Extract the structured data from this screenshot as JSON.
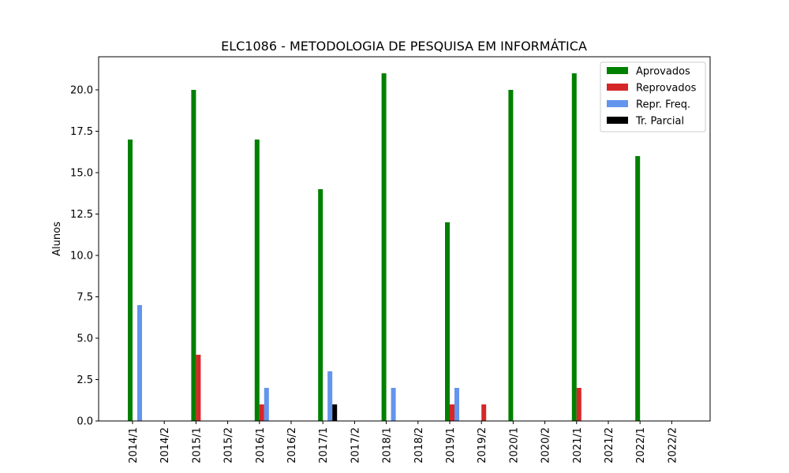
{
  "chart_data": {
    "type": "bar",
    "title": "ELC1086 - METODOLOGIA DE PESQUISA EM INFORMÁTICA",
    "xlabel": "",
    "ylabel": "Alunos",
    "ylim": [
      0,
      22
    ],
    "yticks": [
      "0.0",
      "2.5",
      "5.0",
      "7.5",
      "10.0",
      "12.5",
      "15.0",
      "17.5",
      "20.0"
    ],
    "categories": [
      "2014/1",
      "2014/2",
      "2015/1",
      "2015/2",
      "2016/1",
      "2016/2",
      "2017/1",
      "2017/2",
      "2018/1",
      "2018/2",
      "2019/1",
      "2019/2",
      "2020/1",
      "2020/2",
      "2021/1",
      "2021/2",
      "2022/1",
      "2022/2"
    ],
    "series": [
      {
        "name": "Aprovados",
        "color": "#008000",
        "values": [
          17,
          0,
          20,
          0,
          17,
          0,
          14,
          0,
          21,
          0,
          12,
          0,
          20,
          0,
          21,
          0,
          16,
          0
        ]
      },
      {
        "name": "Reprovados",
        "color": "#d62728",
        "values": [
          0,
          0,
          4,
          0,
          1,
          0,
          0,
          0,
          0,
          0,
          1,
          1,
          0,
          0,
          2,
          0,
          0,
          0
        ]
      },
      {
        "name": "Repr. Freq.",
        "color": "#6495ed",
        "values": [
          7,
          0,
          0,
          0,
          2,
          0,
          3,
          0,
          2,
          0,
          2,
          0,
          0,
          0,
          0,
          0,
          0,
          0
        ]
      },
      {
        "name": "Tr. Parcial",
        "color": "#000000",
        "values": [
          0,
          0,
          0,
          0,
          0,
          0,
          1,
          0,
          0,
          0,
          0,
          0,
          0,
          0,
          0,
          0,
          0,
          0
        ]
      }
    ],
    "grid": false,
    "legend_position": "top-right"
  }
}
